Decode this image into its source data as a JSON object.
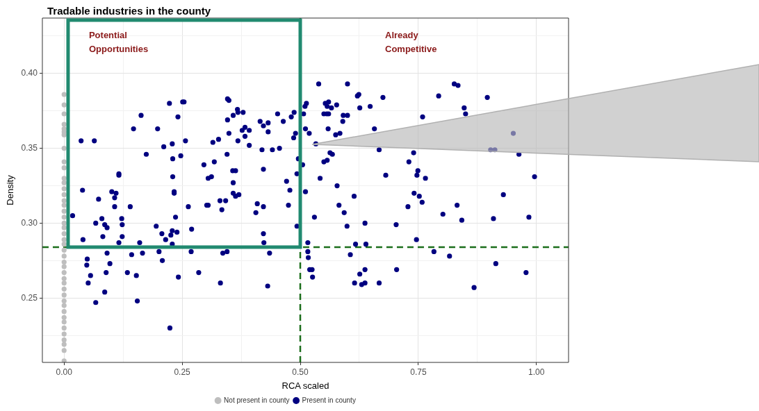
{
  "chart_data": {
    "type": "scatter",
    "title": "Tradable industries in the county",
    "xlabel": "RCA scaled",
    "ylabel": "Density",
    "xlim": [
      -0.046,
      1.068
    ],
    "ylim": [
      0.207,
      0.437
    ],
    "xticks": [
      {
        "value": 0,
        "label": "0.00"
      },
      {
        "value": 0.125,
        "label": null
      },
      {
        "value": 0.25,
        "label": "0.25"
      },
      {
        "value": 0.375,
        "label": null
      },
      {
        "value": 0.5,
        "label": "0.50"
      },
      {
        "value": 0.625,
        "label": null
      },
      {
        "value": 0.75,
        "label": "0.75"
      },
      {
        "value": 0.875,
        "label": null
      },
      {
        "value": 1,
        "label": "1.00"
      }
    ],
    "yticks": [
      {
        "value": 0.225,
        "label": null
      },
      {
        "value": 0.25,
        "label": "0.25"
      },
      {
        "value": 0.275,
        "label": null
      },
      {
        "value": 0.3,
        "label": "0.30"
      },
      {
        "value": 0.325,
        "label": null
      },
      {
        "value": 0.35,
        "label": "0.35"
      },
      {
        "value": 0.375,
        "label": null
      },
      {
        "value": 0.4,
        "label": "0.40"
      },
      {
        "value": 0.425,
        "label": null
      }
    ],
    "grid": true,
    "legend": "bottom",
    "marker": "circle",
    "ref_lines": [
      {
        "axis": "x",
        "value": 0.5,
        "color": "#1b6e1b",
        "line_style": "dashed"
      },
      {
        "axis": "y",
        "value": 0.284,
        "color": "#1b6e1b",
        "line_style": "dashed"
      }
    ],
    "annotations": [
      "Potential Opportunities",
      "Already Competitive"
    ],
    "series": [
      {
        "name": "Not present in county",
        "color": "#bebebe",
        "x": [
          0,
          0,
          0,
          0,
          0,
          0,
          0,
          0,
          0,
          0,
          0,
          0,
          0,
          0,
          0,
          0,
          0,
          0,
          0,
          0,
          0,
          0,
          0,
          0,
          0,
          0,
          0,
          0,
          0,
          0,
          0,
          0,
          0,
          0,
          0,
          0,
          0,
          0,
          0,
          0,
          0,
          0,
          0
        ],
        "values": [
          0.386,
          0.379,
          0.373,
          0.366,
          0.363,
          0.361,
          0.359,
          0.35,
          0.341,
          0.337,
          0.33,
          0.327,
          0.323,
          0.319,
          0.315,
          0.312,
          0.308,
          0.304,
          0.3,
          0.297,
          0.293,
          0.289,
          0.286,
          0.282,
          0.278,
          0.274,
          0.271,
          0.267,
          0.263,
          0.26,
          0.256,
          0.252,
          0.248,
          0.245,
          0.241,
          0.237,
          0.234,
          0.23,
          0.226,
          0.222,
          0.219,
          0.215,
          0.208
        ]
      },
      {
        "name": "Present in county",
        "color": "#000080",
        "x": [
          0.036,
          0.064,
          0.147,
          0.163,
          0.198,
          0.223,
          0.241,
          0.251,
          0.211,
          0.229,
          0.174,
          0.23,
          0.247,
          0.116,
          0.116,
          0.23,
          0.039,
          0.101,
          0.11,
          0.107,
          0.073,
          0.233,
          0.233,
          0.107,
          0.14,
          0.018,
          0.236,
          0.08,
          0.122,
          0.067,
          0.086,
          0.123,
          0.091,
          0.195,
          0.207,
          0.229,
          0.239,
          0.226,
          0.04,
          0.082,
          0.123,
          0.215,
          0.116,
          0.16,
          0.229,
          0.091,
          0.143,
          0.166,
          0.201,
          0.049,
          0.048,
          0.097,
          0.208,
          0.056,
          0.089,
          0.134,
          0.153,
          0.242,
          0.051,
          0.086,
          0.067,
          0.155,
          0.224,
          0.254,
          0.346,
          0.349,
          0.367,
          0.368,
          0.379,
          0.358,
          0.346,
          0.257,
          0.315,
          0.327,
          0.349,
          0.368,
          0.377,
          0.383,
          0.392,
          0.383,
          0.392,
          0.415,
          0.422,
          0.432,
          0.432,
          0.452,
          0.464,
          0.481,
          0.487,
          0.507,
          0.51,
          0.513,
          0.511,
          0.519,
          0.49,
          0.486,
          0.419,
          0.441,
          0.456,
          0.345,
          0.296,
          0.318,
          0.357,
          0.363,
          0.305,
          0.312,
          0.358,
          0.422,
          0.496,
          0.505,
          0.493,
          0.471,
          0.478,
          0.511,
          0.358,
          0.37,
          0.363,
          0.263,
          0.302,
          0.305,
          0.33,
          0.342,
          0.334,
          0.409,
          0.406,
          0.422,
          0.475,
          0.27,
          0.493,
          0.422,
          0.423,
          0.269,
          0.336,
          0.345,
          0.435,
          0.516,
          0.516,
          0.517,
          0.52,
          0.285,
          0.331,
          0.431,
          0.539,
          0.6,
          0.621,
          0.624,
          0.675,
          0.626,
          0.648,
          0.553,
          0.56,
          0.557,
          0.566,
          0.577,
          0.55,
          0.556,
          0.56,
          0.591,
          0.6,
          0.59,
          0.559,
          0.575,
          0.584,
          0.657,
          0.759,
          0.533,
          0.667,
          0.563,
          0.568,
          0.55,
          0.557,
          0.74,
          0.73,
          0.749,
          0.747,
          0.765,
          0.681,
          0.542,
          0.578,
          0.614,
          0.741,
          0.752,
          0.758,
          0.582,
          0.593,
          0.728,
          0.53,
          0.599,
          0.637,
          0.703,
          0.746,
          0.617,
          0.639,
          0.606,
          0.783,
          0.525,
          0.526,
          0.637,
          0.626,
          0.704,
          0.615,
          0.63,
          0.637,
          0.667,
          0.793,
          0.826,
          0.834,
          0.896,
          0.847,
          0.85,
          0.951,
          0.903,
          0.912,
          0.963,
          0.996,
          0.93,
          0.832,
          0.802,
          0.842,
          0.909,
          0.984,
          0.816,
          0.914,
          0.978,
          0.868
        ],
        "values": [
          0.355,
          0.355,
          0.363,
          0.372,
          0.363,
          0.38,
          0.371,
          0.381,
          0.351,
          0.353,
          0.346,
          0.343,
          0.345,
          0.333,
          0.332,
          0.331,
          0.322,
          0.321,
          0.32,
          0.317,
          0.316,
          0.321,
          0.32,
          0.311,
          0.311,
          0.305,
          0.304,
          0.303,
          0.303,
          0.3,
          0.299,
          0.299,
          0.297,
          0.298,
          0.293,
          0.295,
          0.294,
          0.292,
          0.289,
          0.291,
          0.291,
          0.289,
          0.287,
          0.287,
          0.286,
          0.28,
          0.279,
          0.28,
          0.281,
          0.276,
          0.272,
          0.273,
          0.275,
          0.265,
          0.267,
          0.267,
          0.265,
          0.264,
          0.26,
          0.254,
          0.247,
          0.248,
          0.23,
          0.381,
          0.383,
          0.382,
          0.376,
          0.374,
          0.374,
          0.372,
          0.369,
          0.355,
          0.354,
          0.356,
          0.36,
          0.355,
          0.362,
          0.364,
          0.362,
          0.358,
          0.352,
          0.368,
          0.365,
          0.367,
          0.361,
          0.373,
          0.368,
          0.371,
          0.374,
          0.373,
          0.378,
          0.38,
          0.363,
          0.36,
          0.36,
          0.357,
          0.349,
          0.349,
          0.35,
          0.346,
          0.339,
          0.341,
          0.335,
          0.335,
          0.33,
          0.331,
          0.327,
          0.336,
          0.343,
          0.339,
          0.333,
          0.328,
          0.322,
          0.321,
          0.32,
          0.319,
          0.318,
          0.311,
          0.312,
          0.312,
          0.315,
          0.315,
          0.309,
          0.313,
          0.307,
          0.311,
          0.312,
          0.296,
          0.298,
          0.293,
          0.287,
          0.281,
          0.28,
          0.281,
          0.28,
          0.287,
          0.281,
          0.277,
          0.269,
          0.267,
          0.26,
          0.258,
          0.393,
          0.393,
          0.385,
          0.386,
          0.384,
          0.377,
          0.378,
          0.38,
          0.381,
          0.378,
          0.377,
          0.379,
          0.373,
          0.373,
          0.373,
          0.372,
          0.372,
          0.368,
          0.363,
          0.359,
          0.36,
          0.363,
          0.371,
          0.353,
          0.349,
          0.347,
          0.346,
          0.341,
          0.342,
          0.347,
          0.341,
          0.335,
          0.332,
          0.33,
          0.332,
          0.33,
          0.325,
          0.318,
          0.32,
          0.318,
          0.314,
          0.312,
          0.307,
          0.311,
          0.304,
          0.298,
          0.3,
          0.299,
          0.289,
          0.286,
          0.286,
          0.279,
          0.281,
          0.269,
          0.264,
          0.269,
          0.266,
          0.269,
          0.26,
          0.259,
          0.26,
          0.26,
          0.385,
          0.393,
          0.392,
          0.384,
          0.377,
          0.373,
          0.36,
          0.349,
          0.349,
          0.346,
          0.331,
          0.319,
          0.312,
          0.306,
          0.302,
          0.303,
          0.304,
          0.278,
          0.273,
          0.267,
          0.257
        ]
      }
    ]
  }
}
